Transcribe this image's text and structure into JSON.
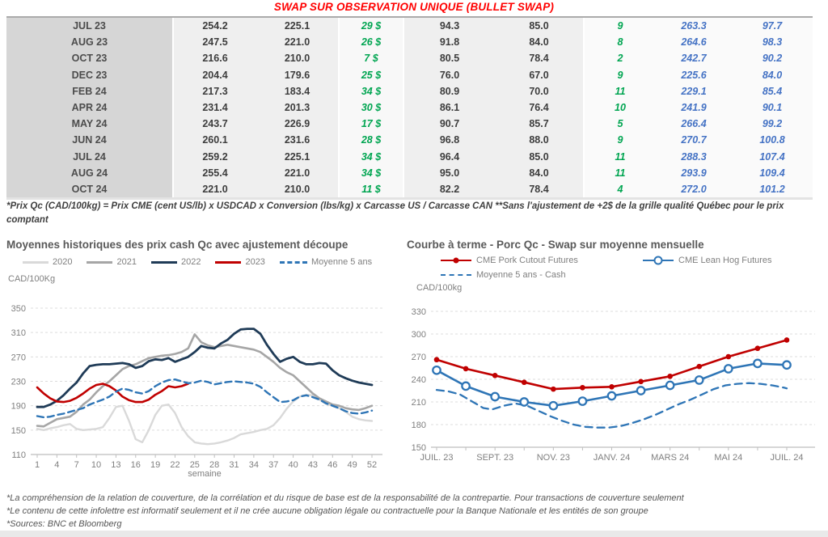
{
  "header": {
    "title": "SWAP SUR OBSERVATION UNIQUE (BULLET SWAP)"
  },
  "table": {
    "rows": [
      [
        "JUL 23",
        "254.2",
        "225.1",
        "29 $",
        "94.3",
        "85.0",
        "9",
        "263.3",
        "97.7"
      ],
      [
        "AUG 23",
        "247.5",
        "221.0",
        "26 $",
        "91.8",
        "84.0",
        "8",
        "264.6",
        "98.3"
      ],
      [
        "OCT 23",
        "216.6",
        "210.0",
        "7 $",
        "80.5",
        "78.4",
        "2",
        "242.7",
        "90.2"
      ],
      [
        "DEC 23",
        "204.4",
        "179.6",
        "25 $",
        "76.0",
        "67.0",
        "9",
        "225.6",
        "84.0"
      ],
      [
        "FEB 24",
        "217.3",
        "183.4",
        "34 $",
        "80.9",
        "70.0",
        "11",
        "229.1",
        "85.4"
      ],
      [
        "APR 24",
        "231.4",
        "201.3",
        "30 $",
        "86.1",
        "76.4",
        "10",
        "241.9",
        "90.1"
      ],
      [
        "MAY 24",
        "243.7",
        "226.9",
        "17 $",
        "90.7",
        "85.7",
        "5",
        "266.4",
        "99.2"
      ],
      [
        "JUN 24",
        "260.1",
        "231.6",
        "28 $",
        "96.8",
        "88.0",
        "9",
        "270.7",
        "100.8"
      ],
      [
        "JUL 24",
        "259.2",
        "225.1",
        "34 $",
        "96.4",
        "85.0",
        "11",
        "288.3",
        "107.4"
      ],
      [
        "AUG 24",
        "255.4",
        "221.0",
        "34 $",
        "95.0",
        "84.0",
        "11",
        "293.9",
        "109.4"
      ],
      [
        "OCT 24",
        "221.0",
        "210.0",
        "11 $",
        "82.2",
        "78.4",
        "4",
        "272.0",
        "101.2"
      ]
    ],
    "footnote": "*Prix Qc (CAD/100kg) = Prix CME (cent US/lb) x USDCAD x Conversion (lbs/kg) x Carcasse US / Carcasse CAN **Sans l'ajustement de +2$ de la grille qualité Québec pour le prix comptant"
  },
  "chart_data": [
    {
      "type": "line",
      "title": "Moyennes historiques des prix cash Qc avec ajustement découpe",
      "ylabel": "CAD/100Kg",
      "xlabel": "semaine",
      "xlim": [
        1,
        52
      ],
      "ylim": [
        110,
        350
      ],
      "yticks": [
        110,
        150,
        190,
        230,
        270,
        310,
        350
      ],
      "xticks": [
        1,
        4,
        7,
        10,
        13,
        16,
        19,
        22,
        25,
        28,
        31,
        34,
        37,
        40,
        43,
        46,
        49,
        52
      ],
      "series": [
        {
          "name": "2020",
          "color": "#d9d9d9",
          "width": 2.4,
          "start": 1,
          "step": 1,
          "values": [
            152,
            150,
            153,
            155,
            158,
            160,
            152,
            150,
            151,
            152,
            155,
            170,
            188,
            190,
            165,
            135,
            130,
            150,
            175,
            190,
            192,
            178,
            155,
            140,
            130,
            128,
            127,
            128,
            130,
            133,
            137,
            143,
            145,
            147,
            150,
            152,
            158,
            170,
            185,
            197,
            205,
            208,
            207,
            200,
            193,
            190,
            186,
            180,
            172,
            168,
            166,
            165
          ]
        },
        {
          "name": "2021",
          "color": "#a6a6a6",
          "width": 2.6,
          "start": 1,
          "step": 1,
          "values": [
            157,
            156,
            162,
            168,
            170,
            172,
            180,
            192,
            200,
            212,
            222,
            230,
            240,
            250,
            255,
            258,
            263,
            268,
            270,
            272,
            273,
            275,
            278,
            284,
            307,
            294,
            289,
            286,
            288,
            290,
            288,
            286,
            284,
            282,
            278,
            270,
            262,
            252,
            245,
            240,
            230,
            220,
            210,
            202,
            197,
            192,
            190,
            186,
            184,
            183,
            186,
            190
          ]
        },
        {
          "name": "2022",
          "color": "#1f3b57",
          "width": 2.8,
          "start": 1,
          "step": 1,
          "values": [
            188,
            188,
            192,
            198,
            207,
            218,
            228,
            243,
            255,
            257,
            258,
            258,
            259,
            260,
            258,
            252,
            255,
            263,
            266,
            265,
            268,
            262,
            266,
            270,
            278,
            288,
            285,
            284,
            292,
            298,
            308,
            315,
            316,
            316,
            308,
            290,
            275,
            262,
            267,
            270,
            262,
            258,
            258,
            260,
            259,
            248,
            240,
            235,
            231,
            228,
            226,
            224
          ]
        },
        {
          "name": "2023",
          "color": "#c00000",
          "width": 2.6,
          "start": 1,
          "step": 1,
          "values": [
            220,
            210,
            202,
            197,
            196,
            198,
            203,
            210,
            218,
            224,
            226,
            222,
            215,
            205,
            199,
            196,
            196,
            200,
            208,
            214,
            222,
            220,
            222,
            226
          ]
        },
        {
          "name": "Moyenne 5 ans",
          "color": "#2e75b6",
          "width": 2.4,
          "dash": "8 5",
          "start": 1,
          "step": 1,
          "values": [
            173,
            171,
            172,
            175,
            177,
            180,
            183,
            186,
            192,
            196,
            200,
            205,
            213,
            218,
            216,
            212,
            210,
            214,
            222,
            228,
            232,
            233,
            230,
            227,
            228,
            231,
            229,
            225,
            227,
            229,
            230,
            229,
            228,
            226,
            221,
            212,
            204,
            196,
            197,
            199,
            205,
            207,
            204,
            200,
            194,
            190,
            186,
            181,
            178,
            177,
            179,
            182
          ]
        }
      ]
    },
    {
      "type": "line",
      "title": "Courbe à terme - Porc Qc - Swap sur moyenne mensuelle",
      "ylabel": "CAD/100kg",
      "xlim": [
        0,
        12
      ],
      "ylim": [
        150,
        330
      ],
      "yticks": [
        150,
        180,
        210,
        240,
        270,
        300,
        330
      ],
      "x_tick_labels": [
        "JUIL. 23",
        "SEPT. 23",
        "NOV. 23",
        "JANV. 24",
        "MARS 24",
        "MAI 24",
        "JUIL. 24"
      ],
      "series": [
        {
          "name": "Moyenne 5 ans - Cash",
          "color": "#2e75b6",
          "width": 2.3,
          "dash": "9 6",
          "points": [
            [
              0,
              226
            ],
            [
              0.4,
              224
            ],
            [
              0.8,
              220
            ],
            [
              1.2,
              211
            ],
            [
              1.6,
              202
            ],
            [
              1.9,
              200
            ],
            [
              2.3,
              205
            ],
            [
              2.7,
              208
            ],
            [
              3.1,
              205
            ],
            [
              3.5,
              198
            ],
            [
              3.9,
              191
            ],
            [
              4.3,
              185
            ],
            [
              4.7,
              180
            ],
            [
              5.1,
              177
            ],
            [
              5.5,
              176
            ],
            [
              5.9,
              176
            ],
            [
              6.3,
              178
            ],
            [
              6.7,
              182
            ],
            [
              7.1,
              187
            ],
            [
              7.5,
              193
            ],
            [
              7.9,
              200
            ],
            [
              8.3,
              207
            ],
            [
              8.7,
              213
            ],
            [
              9.1,
              220
            ],
            [
              9.5,
              227
            ],
            [
              9.9,
              232
            ],
            [
              10.3,
              234
            ],
            [
              10.7,
              235
            ],
            [
              11.1,
              234
            ],
            [
              11.5,
              232
            ],
            [
              11.9,
              229
            ],
            [
              12,
              228
            ]
          ]
        },
        {
          "name": "CME Pork Cutout Futures",
          "color": "#c00000",
          "width": 2.6,
          "marker": "dot",
          "start": 0,
          "step": 1,
          "values": [
            266,
            254,
            245,
            236,
            227,
            229,
            230,
            237,
            244,
            257,
            270,
            281,
            292
          ]
        },
        {
          "name": "CME Lean Hog Futures",
          "color": "#2e75b6",
          "width": 2.6,
          "marker": "circle",
          "start": 0,
          "step": 1,
          "values": [
            252,
            231,
            217,
            210,
            205,
            211,
            218,
            225,
            232,
            239,
            254,
            261,
            259
          ]
        }
      ]
    }
  ],
  "footnotes": [
    "*La compréhension de la relation de couverture, de la corrélation et du risque de base est de la responsabilité de la contrepartie. Pour transactions de couverture seulement",
    "*Le contenu de cette infolettre est informatif seulement et il ne crée aucune obligation légale ou contractuelle pour la Banque Nationale et les entités de son groupe",
    "*Sources: BNC et Bloomberg"
  ],
  "colors": {
    "title_red": "#ff0000",
    "table_green": "#00a551",
    "table_blue": "#4472c4",
    "line_2020": "#d9d9d9",
    "line_2021": "#a6a6a6",
    "line_2022": "#1f3b57",
    "line_2023": "#c00000",
    "line_blue": "#2e75b6"
  }
}
